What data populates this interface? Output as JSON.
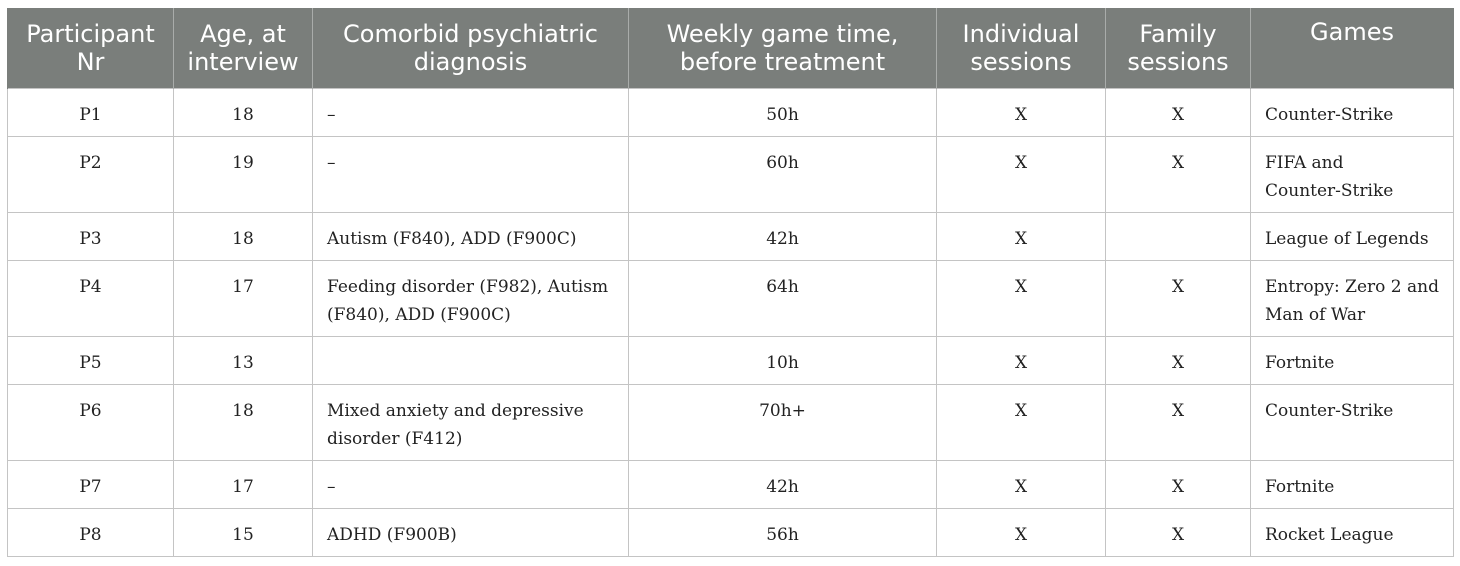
{
  "table": {
    "headers": {
      "participant": [
        "Participant",
        "Nr"
      ],
      "age": [
        "Age, at",
        "interview"
      ],
      "diagnosis": [
        "Comorbid psychiatric",
        "diagnosis"
      ],
      "game_time": [
        "Weekly game time,",
        "before treatment"
      ],
      "individual": [
        "Individual",
        "sessions"
      ],
      "family": [
        "Family",
        "sessions"
      ],
      "games": [
        "Games"
      ]
    },
    "rows": [
      {
        "participant": "P1",
        "age": "18",
        "diagnosis": "–",
        "game_time": "50h",
        "individual": "X",
        "family": "X",
        "games": [
          "Counter-Strike"
        ]
      },
      {
        "participant": "P2",
        "age": "19",
        "diagnosis": "–",
        "game_time": "60h",
        "individual": "X",
        "family": "X",
        "games": [
          "FIFA and",
          "Counter-Strike"
        ]
      },
      {
        "participant": "P3",
        "age": "18",
        "diagnosis": "Autism (F840), ADD (F900C)",
        "game_time": "42h",
        "individual": "X",
        "family": "",
        "games": [
          "League of Legends"
        ]
      },
      {
        "participant": "P4",
        "age": "17",
        "diagnosis": "Feeding disorder (F982), Autism (F840), ADD (F900C)",
        "game_time": "64h",
        "individual": "X",
        "family": "X",
        "games": [
          "Entropy: Zero 2 and",
          "Man of War"
        ]
      },
      {
        "participant": "P5",
        "age": "13",
        "diagnosis": "",
        "game_time": "10h",
        "individual": "X",
        "family": "X",
        "games": [
          "Fortnite"
        ]
      },
      {
        "participant": "P6",
        "age": "18",
        "diagnosis": "Mixed anxiety and depressive disorder (F412)",
        "game_time": "70h+",
        "individual": "X",
        "family": "X",
        "games": [
          "Counter-Strike"
        ]
      },
      {
        "participant": "P7",
        "age": "17",
        "diagnosis": "–",
        "game_time": "42h",
        "individual": "X",
        "family": "X",
        "games": [
          "Fortnite"
        ]
      },
      {
        "participant": "P8",
        "age": "15",
        "diagnosis": "ADHD (F900B)",
        "game_time": "56h",
        "individual": "X",
        "family": "X",
        "games": [
          "Rocket League"
        ]
      }
    ]
  }
}
